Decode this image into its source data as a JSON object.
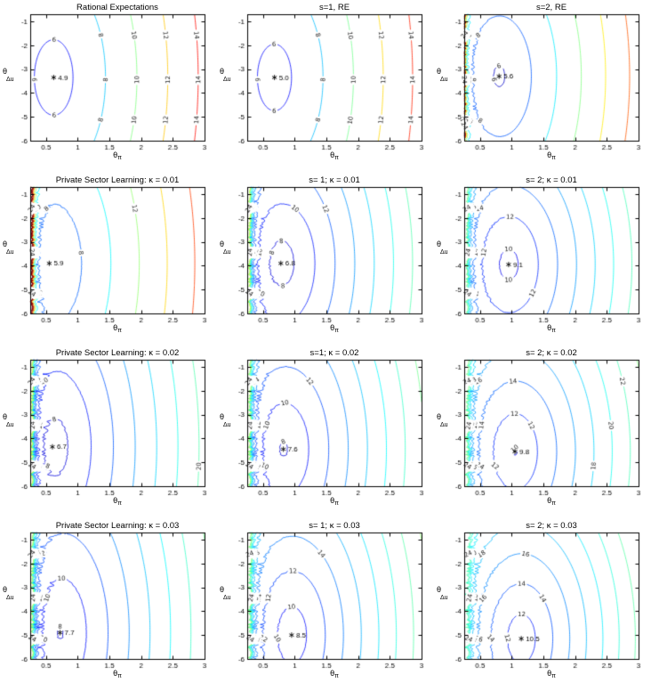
{
  "chart_data": {
    "type": "contour",
    "rows": 4,
    "cols": 3,
    "meta": {
      "xlabel_base": "θ",
      "xlabel_sub": "π",
      "ylabel_base": "θ",
      "ylabel_sub": "Δu",
      "xticks": [
        0.5,
        1,
        1.5,
        2,
        2.5,
        3
      ],
      "yticks": [
        -1,
        -2,
        -3,
        -4,
        -5,
        -6
      ],
      "xlim": [
        0.25,
        3
      ],
      "ylim": [
        -6,
        -0.7
      ],
      "levels": [
        6,
        8,
        10,
        12,
        14,
        16,
        18,
        20,
        22,
        24
      ],
      "grid_on": false,
      "legend": "none"
    },
    "subplots": [
      {
        "title": "Rational Expectations",
        "min": {
          "x": 0.62,
          "y": -3.35,
          "value": 4.9,
          "label": "4.9"
        },
        "corner_value": 14.6,
        "sx": 0.5,
        "sy": 2.6,
        "p": 1.05,
        "cmin": 4.5,
        "cmax": 15.5,
        "wall_amp": 0,
        "wall_jag": 0
      },
      {
        "title": "s=1, RE",
        "min": {
          "x": 0.68,
          "y": -3.35,
          "value": 5.0,
          "label": "5.0"
        },
        "corner_value": 14.8,
        "sx": 0.5,
        "sy": 2.6,
        "p": 1.05,
        "cmin": 4.5,
        "cmax": 15.8,
        "wall_amp": 0,
        "wall_jag": 0
      },
      {
        "title": "s=2, RE",
        "min": {
          "x": 0.8,
          "y": -3.3,
          "value": 5.6,
          "label": "5.6"
        },
        "corner_value": 17.0,
        "sx": 0.52,
        "sy": 2.6,
        "p": 1.05,
        "cmin": 5,
        "cmax": 19,
        "wall_amp": 0.004,
        "wall_jag": 1.5
      },
      {
        "title": "Private Sector Learning: κ = 0.01",
        "min": {
          "x": 0.55,
          "y": -3.9,
          "value": 5.9,
          "label": "5.9"
        },
        "corner_value": 17.0,
        "sx": 0.5,
        "sy": 2.6,
        "p": 1.05,
        "cmin": 5,
        "cmax": 18.5,
        "wall_amp": 0.012,
        "wall_jag": 1.2
      },
      {
        "title": "s= 1; κ = 0.01",
        "min": {
          "x": 0.78,
          "y": -3.9,
          "value": 6.8,
          "label": "6.8"
        },
        "corner_value": 21.5,
        "sx": 0.55,
        "sy": 2.6,
        "p": 1.05,
        "cmin": 5,
        "cmax": 38,
        "wall_amp": 0.016,
        "wall_jag": 1.2
      },
      {
        "title": "s= 2; κ = 0.01",
        "min": {
          "x": 0.95,
          "y": -3.95,
          "value": 9.1,
          "label": "9.1"
        },
        "corner_value": 23.5,
        "sx": 0.6,
        "sy": 2.6,
        "p": 1.05,
        "cmin": 6,
        "cmax": 42,
        "wall_amp": 0.016,
        "wall_jag": 1.2
      },
      {
        "title": "Private Sector Learning: κ = 0.02",
        "min": {
          "x": 0.6,
          "y": -4.35,
          "value": 6.7,
          "label": "6.7"
        },
        "corner_value": 21.0,
        "sx": 0.5,
        "sy": 2.7,
        "p": 1.05,
        "cmin": 5,
        "cmax": 38,
        "wall_amp": 0.014,
        "wall_jag": 1.5
      },
      {
        "title": "s=1; κ = 0.02",
        "min": {
          "x": 0.82,
          "y": -4.45,
          "value": 7.6,
          "label": "7.6"
        },
        "corner_value": 22.5,
        "sx": 0.55,
        "sy": 2.7,
        "p": 1.05,
        "cmin": 5,
        "cmax": 40,
        "wall_amp": 0.016,
        "wall_jag": 1.5
      },
      {
        "title": "s= 2; κ = 0.02",
        "min": {
          "x": 1.05,
          "y": -4.55,
          "value": 9.8,
          "label": "9.8"
        },
        "corner_value": 24.0,
        "sx": 0.6,
        "sy": 2.7,
        "p": 1.05,
        "cmin": 6,
        "cmax": 42,
        "wall_amp": 0.016,
        "wall_jag": 1.5
      },
      {
        "title": "Private Sector Learning: κ = 0.03",
        "min": {
          "x": 0.72,
          "y": -4.9,
          "value": 7.7,
          "label": "7.7"
        },
        "corner_value": 22.0,
        "sx": 0.5,
        "sy": 2.8,
        "p": 1.05,
        "cmin": 5,
        "cmax": 40,
        "wall_amp": 0.014,
        "wall_jag": 1.6
      },
      {
        "title": "s= 1; κ = 0.03",
        "min": {
          "x": 0.95,
          "y": -5.0,
          "value": 8.5,
          "label": "8.5"
        },
        "corner_value": 24.0,
        "sx": 0.55,
        "sy": 2.8,
        "p": 1.05,
        "cmin": 5,
        "cmax": 42,
        "wall_amp": 0.016,
        "wall_jag": 1.6
      },
      {
        "title": "s= 2; κ = 0.03",
        "min": {
          "x": 1.15,
          "y": -5.15,
          "value": 10.5,
          "label": "10.5"
        },
        "corner_value": 26.0,
        "sx": 0.6,
        "sy": 2.8,
        "p": 1.05,
        "cmin": 6,
        "cmax": 45,
        "wall_amp": 0.016,
        "wall_jag": 1.6
      }
    ]
  }
}
